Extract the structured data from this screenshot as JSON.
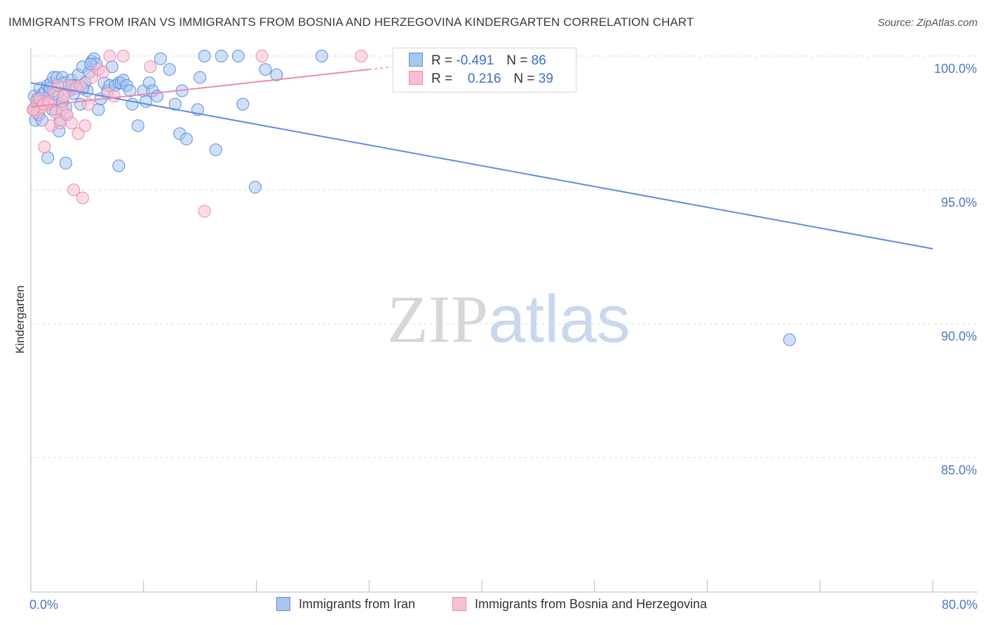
{
  "title": "IMMIGRANTS FROM IRAN VS IMMIGRANTS FROM BOSNIA AND HERZEGOVINA KINDERGARTEN CORRELATION CHART",
  "source": "Source: ZipAtlas.com",
  "watermark": {
    "zip": "ZIP",
    "atlas": "atlas"
  },
  "legend": {
    "r_label": "R =",
    "n_label": "N =",
    "series": [
      {
        "r": "-0.491",
        "n": "86",
        "fill": "#a9c6f0",
        "stroke": "#5b8ee0"
      },
      {
        "r": "0.216",
        "n": "39",
        "fill": "#f7c0d2",
        "stroke": "#ea8aab"
      }
    ]
  },
  "chart_data": {
    "type": "scatter",
    "title": "IMMIGRANTS FROM IRAN VS IMMIGRANTS FROM BOSNIA AND HERZEGOVINA KINDERGARTEN CORRELATION CHART",
    "xlabel": "",
    "ylabel": "Kindergarten",
    "xlim": [
      0,
      80
    ],
    "ylim": [
      80.5,
      100.5
    ],
    "x_tick_labels": [
      "0.0%",
      "80.0%"
    ],
    "y_ticks": [
      85,
      90,
      95,
      100
    ],
    "y_tick_labels": [
      "85.0%",
      "90.0%",
      "95.0%",
      "100.0%"
    ],
    "grid": true,
    "series": [
      {
        "name": "Immigrants from Iran",
        "color": "#5b8ee0",
        "fill": "#a9c6f0",
        "trend": {
          "x": [
            0,
            80
          ],
          "y": [
            99.0,
            92.8
          ]
        },
        "points": [
          [
            0.2,
            98.0
          ],
          [
            0.3,
            98.5
          ],
          [
            0.4,
            97.6
          ],
          [
            0.5,
            98.2
          ],
          [
            0.6,
            98.4
          ],
          [
            0.7,
            97.8
          ],
          [
            0.8,
            98.8
          ],
          [
            1.0,
            97.6
          ],
          [
            1.1,
            98.6
          ],
          [
            1.2,
            98.3
          ],
          [
            1.3,
            98.7
          ],
          [
            1.5,
            98.9
          ],
          [
            1.6,
            98.5
          ],
          [
            1.7,
            98.8
          ],
          [
            1.8,
            99.0
          ],
          [
            2.0,
            99.2
          ],
          [
            2.1,
            98.6
          ],
          [
            2.2,
            98.0
          ],
          [
            2.3,
            99.2
          ],
          [
            2.5,
            97.2
          ],
          [
            2.6,
            97.6
          ],
          [
            2.8,
            99.2
          ],
          [
            3.0,
            99.0
          ],
          [
            3.1,
            98.1
          ],
          [
            3.2,
            97.8
          ],
          [
            3.4,
            98.7
          ],
          [
            3.6,
            99.1
          ],
          [
            3.8,
            98.6
          ],
          [
            4.0,
            98.9
          ],
          [
            4.2,
            99.3
          ],
          [
            4.4,
            98.2
          ],
          [
            4.6,
            99.6
          ],
          [
            4.8,
            99.0
          ],
          [
            5.0,
            98.7
          ],
          [
            5.2,
            99.4
          ],
          [
            5.4,
            99.8
          ],
          [
            5.6,
            99.9
          ],
          [
            5.8,
            99.7
          ],
          [
            6.0,
            98.0
          ],
          [
            6.2,
            98.4
          ],
          [
            6.5,
            99.0
          ],
          [
            6.8,
            98.7
          ],
          [
            7.0,
            98.9
          ],
          [
            7.2,
            99.6
          ],
          [
            7.5,
            98.9
          ],
          [
            7.8,
            99.0
          ],
          [
            8.0,
            99.0
          ],
          [
            8.2,
            99.1
          ],
          [
            8.5,
            98.9
          ],
          [
            8.8,
            98.7
          ],
          [
            9.0,
            98.2
          ],
          [
            9.5,
            97.4
          ],
          [
            10.0,
            98.7
          ],
          [
            10.2,
            98.3
          ],
          [
            10.5,
            99.0
          ],
          [
            10.8,
            98.7
          ],
          [
            11.2,
            98.5
          ],
          [
            11.5,
            99.9
          ],
          [
            12.3,
            99.5
          ],
          [
            12.8,
            98.2
          ],
          [
            13.2,
            97.1
          ],
          [
            13.4,
            98.7
          ],
          [
            13.8,
            96.9
          ],
          [
            14.8,
            98.0
          ],
          [
            15.0,
            99.2
          ],
          [
            15.4,
            100.0
          ],
          [
            16.4,
            96.5
          ],
          [
            16.9,
            100.0
          ],
          [
            18.4,
            100.0
          ],
          [
            18.8,
            98.2
          ],
          [
            19.9,
            95.1
          ],
          [
            20.8,
            99.5
          ],
          [
            21.8,
            99.3
          ],
          [
            25.8,
            100.0
          ],
          [
            67.3,
            89.4
          ],
          [
            1.5,
            96.2
          ],
          [
            3.1,
            96.0
          ],
          [
            7.8,
            95.9
          ],
          [
            4.6,
            98.8
          ],
          [
            1.9,
            98.0
          ],
          [
            2.4,
            98.5
          ],
          [
            0.9,
            98.3
          ],
          [
            3.7,
            98.9
          ],
          [
            5.3,
            99.7
          ],
          [
            0.4,
            98.1
          ],
          [
            2.8,
            98.3
          ]
        ]
      },
      {
        "name": "Immigrants from Bosnia and Herzegovina",
        "color": "#ea8aab",
        "fill": "#f7c0d2",
        "trend": {
          "x": [
            0,
            30
          ],
          "y": [
            98.1,
            99.5
          ]
        },
        "points": [
          [
            0.3,
            98.0
          ],
          [
            0.5,
            98.3
          ],
          [
            0.6,
            97.9
          ],
          [
            0.8,
            98.4
          ],
          [
            1.0,
            98.1
          ],
          [
            1.2,
            96.6
          ],
          [
            1.5,
            98.2
          ],
          [
            1.8,
            97.4
          ],
          [
            2.0,
            98.7
          ],
          [
            2.2,
            97.9
          ],
          [
            2.4,
            98.9
          ],
          [
            2.6,
            97.5
          ],
          [
            2.8,
            98.0
          ],
          [
            3.0,
            98.6
          ],
          [
            3.2,
            97.8
          ],
          [
            3.4,
            98.9
          ],
          [
            3.6,
            97.5
          ],
          [
            3.8,
            95.0
          ],
          [
            4.0,
            98.8
          ],
          [
            4.2,
            97.1
          ],
          [
            4.4,
            98.9
          ],
          [
            4.6,
            94.7
          ],
          [
            4.8,
            97.4
          ],
          [
            5.1,
            98.2
          ],
          [
            5.4,
            99.2
          ],
          [
            6.0,
            99.5
          ],
          [
            6.4,
            99.4
          ],
          [
            6.8,
            98.6
          ],
          [
            7.0,
            100.0
          ],
          [
            7.4,
            98.5
          ],
          [
            8.2,
            100.0
          ],
          [
            10.6,
            99.6
          ],
          [
            15.4,
            94.2
          ],
          [
            20.5,
            100.0
          ],
          [
            29.3,
            100.0
          ],
          [
            1.1,
            98.2
          ],
          [
            2.9,
            98.5
          ],
          [
            0.2,
            98.0
          ],
          [
            1.6,
            98.3
          ]
        ]
      }
    ]
  },
  "bottom_legend": [
    {
      "label": "Immigrants from Iran"
    },
    {
      "label": "Immigrants from Bosnia and Herzegovina"
    }
  ]
}
